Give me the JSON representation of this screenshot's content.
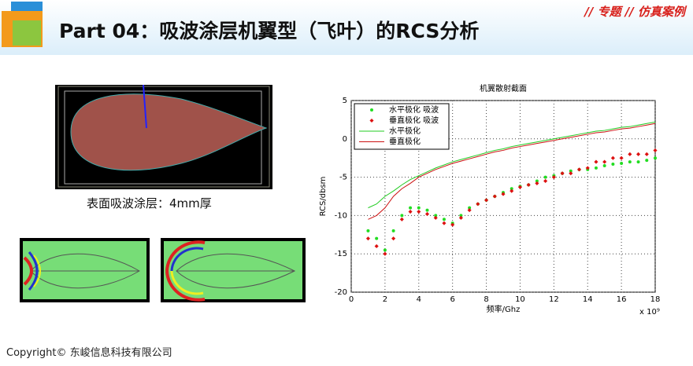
{
  "header": {
    "title": "Part 04：吸波涂层机翼型（飞叶）的RCS分析",
    "tag": "// 专题 // 仿真案例"
  },
  "caption": "表面吸波涂层：4mm厚",
  "footer": "Copyright© 东峻信息科技有限公司",
  "chart_data": {
    "type": "line",
    "title": "机翼散射截面",
    "xlabel": "频率/Ghz",
    "ylabel": "RCS/dbsm",
    "x_multiplier": "x 10⁹",
    "xlim": [
      0,
      18
    ],
    "xticks": [
      0,
      2,
      4,
      6,
      8,
      10,
      12,
      14,
      16,
      18
    ],
    "ylim": [
      -20,
      5
    ],
    "yticks": [
      -20,
      -15,
      -10,
      -5,
      0,
      5
    ],
    "grid": true,
    "legend": "upper left",
    "x": [
      1,
      1.5,
      2,
      2.5,
      3,
      3.5,
      4,
      4.5,
      5,
      5.5,
      6,
      6.5,
      7,
      7.5,
      8,
      8.5,
      9,
      9.5,
      10,
      10.5,
      11,
      11.5,
      12,
      12.5,
      13,
      13.5,
      14,
      14.5,
      15,
      15.5,
      16,
      16.5,
      17,
      17.5,
      18
    ],
    "series": [
      {
        "name": "水平极化 吸波",
        "color": "#22dd22",
        "mode": "markers",
        "marker": "dot",
        "values": [
          -12,
          -13,
          -14.5,
          -12,
          -10,
          -9,
          -9,
          -9.3,
          -10,
          -10.5,
          -11,
          -10,
          -9,
          -8.5,
          -8,
          -7.5,
          -7,
          -6.5,
          -6.2,
          -6,
          -5.5,
          -5,
          -4.8,
          -4.5,
          -4.2,
          -4,
          -4,
          -3.8,
          -3.5,
          -3.3,
          -3.2,
          -3,
          -3,
          -2.8,
          -2.5
        ]
      },
      {
        "name": "垂直极化 吸波",
        "color": "#dd1111",
        "mode": "markers",
        "marker": "diamond",
        "values": [
          -13,
          -14,
          -15,
          -13,
          -10.5,
          -9.5,
          -9.5,
          -9.8,
          -10.3,
          -11,
          -11.2,
          -10.3,
          -9.3,
          -8.5,
          -8,
          -7.5,
          -7.2,
          -6.8,
          -6.3,
          -6,
          -5.8,
          -5.5,
          -5,
          -4.5,
          -4.5,
          -4,
          -3.8,
          -3,
          -3,
          -2.5,
          -2.5,
          -2,
          -2,
          -2,
          -1.5
        ]
      },
      {
        "name": "水平极化",
        "color": "#22cc22",
        "mode": "line",
        "values": [
          -9,
          -8.5,
          -7.5,
          -6.8,
          -6,
          -5.3,
          -4.8,
          -4.3,
          -3.8,
          -3.4,
          -3,
          -2.7,
          -2.4,
          -2.1,
          -1.8,
          -1.5,
          -1.3,
          -1,
          -0.8,
          -0.6,
          -0.4,
          -0.2,
          0,
          0.2,
          0.4,
          0.6,
          0.8,
          1,
          1.1,
          1.3,
          1.5,
          1.6,
          1.8,
          2,
          2.2
        ]
      },
      {
        "name": "垂直极化",
        "color": "#cc1111",
        "mode": "line",
        "values": [
          -10.5,
          -10,
          -9,
          -7.5,
          -6.5,
          -5.8,
          -5,
          -4.5,
          -4,
          -3.6,
          -3.2,
          -2.9,
          -2.6,
          -2.3,
          -2,
          -1.7,
          -1.5,
          -1.2,
          -1,
          -0.8,
          -0.6,
          -0.4,
          -0.2,
          0,
          0.2,
          0.4,
          0.6,
          0.8,
          0.9,
          1.1,
          1.3,
          1.4,
          1.6,
          1.8,
          2
        ]
      }
    ]
  }
}
